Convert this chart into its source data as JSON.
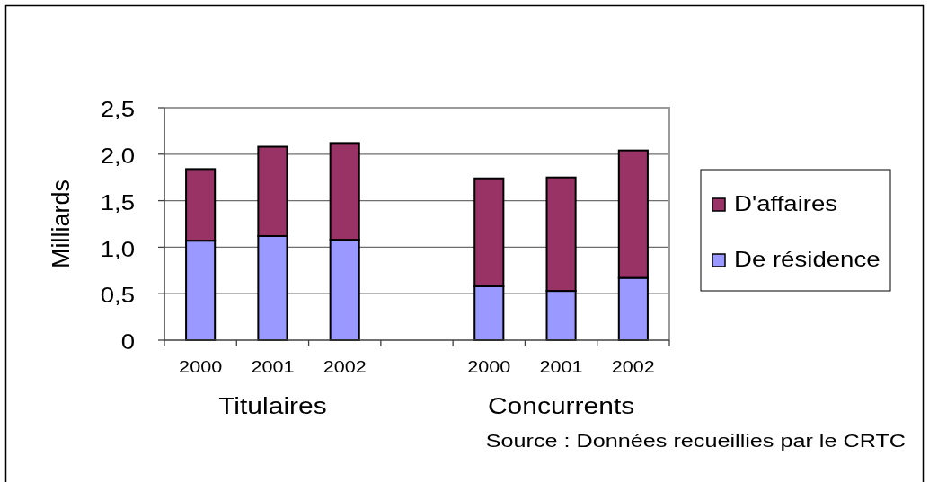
{
  "chart_data": {
    "type": "bar",
    "stacked": true,
    "ylabel": "Milliards",
    "categories": [
      "2000",
      "2001",
      "2002",
      null,
      "2000",
      "2001",
      "2002"
    ],
    "series": [
      {
        "name": "De résidence",
        "color": "#9999ff",
        "values": [
          1.07,
          1.12,
          1.08,
          null,
          0.58,
          0.53,
          0.67
        ]
      },
      {
        "name": "D'affaires",
        "color": "#993366",
        "values": [
          0.77,
          0.96,
          1.04,
          null,
          1.16,
          1.22,
          1.37
        ]
      }
    ],
    "ylim": [
      0,
      2.5
    ],
    "yticks": [
      0,
      {
        "value": 0.5,
        "label": "0,5"
      },
      {
        "value": 1,
        "label": "1,0"
      },
      {
        "value": 1.5,
        "label": "1,5"
      },
      {
        "value": 2,
        "label": "2,0"
      },
      {
        "value": 2.5,
        "label": "2,5"
      }
    ],
    "grid": "y",
    "legend": "right",
    "annotations": [
      "Titulaires",
      "Concurrents",
      "Source : Données recueillies par le CRTC"
    ]
  }
}
